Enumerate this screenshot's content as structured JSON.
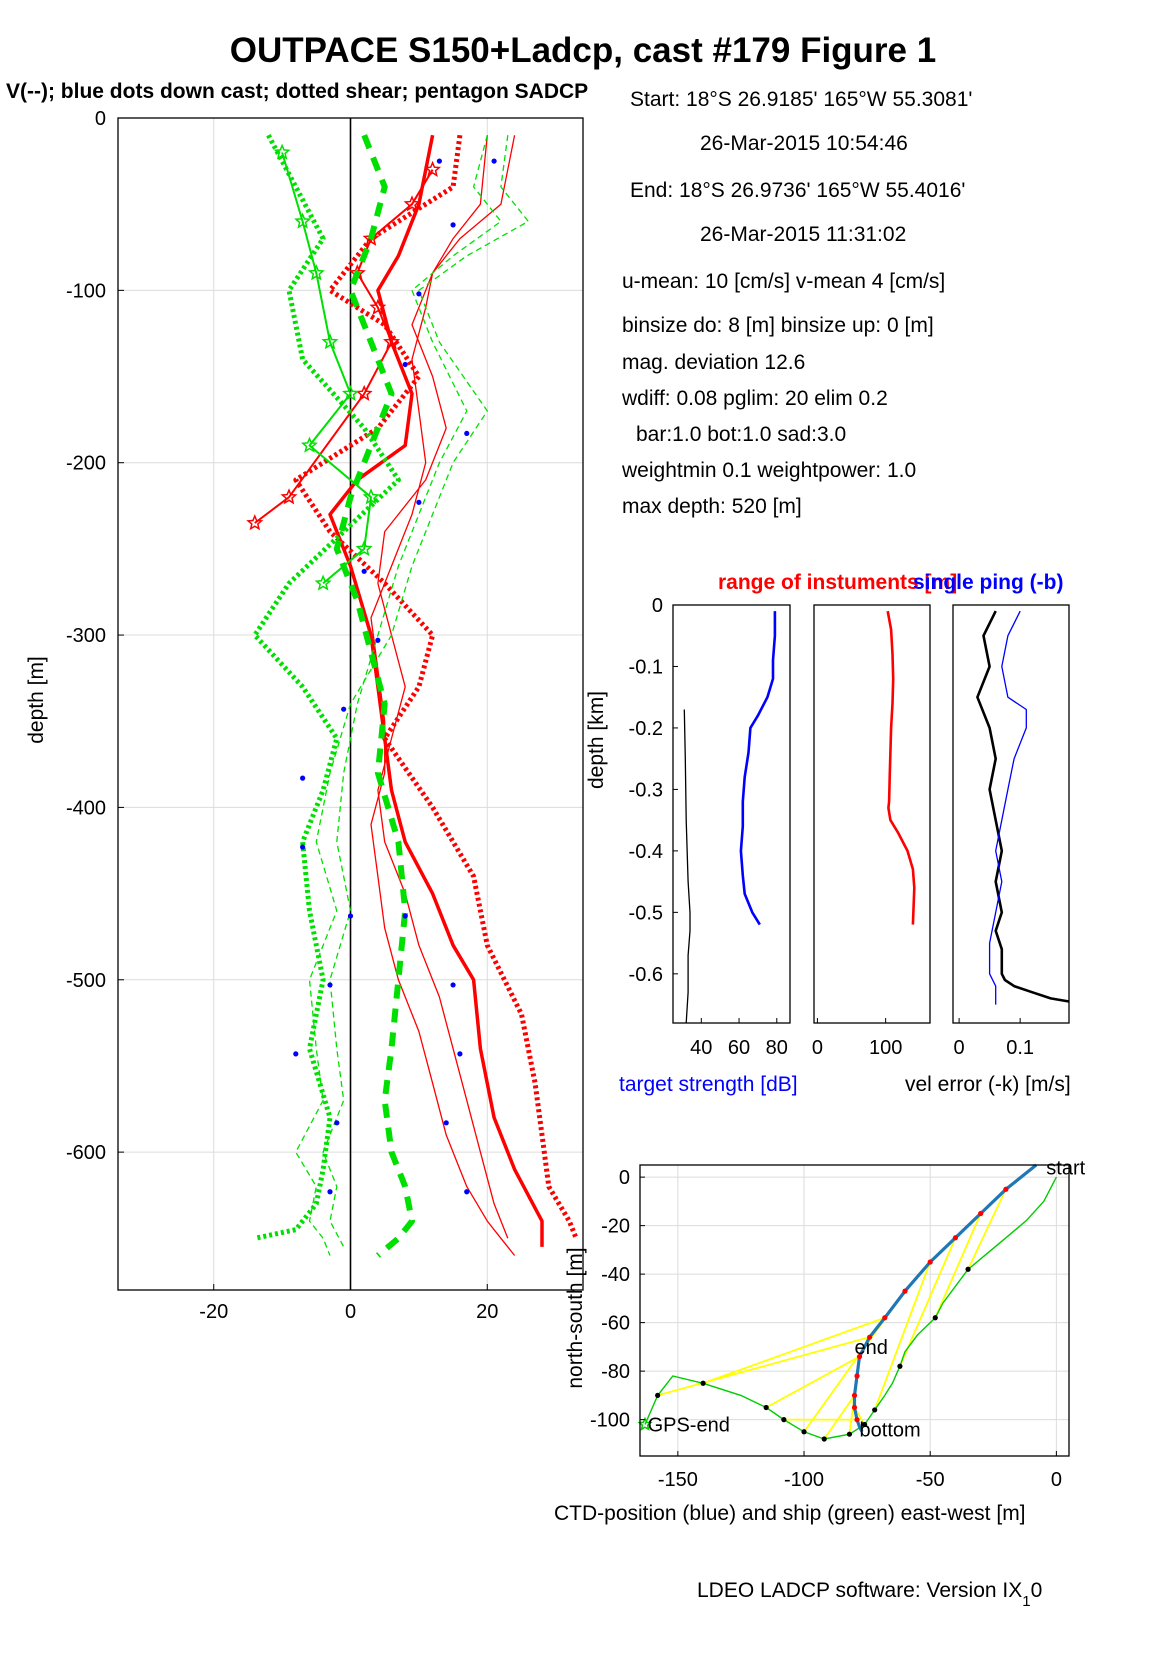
{
  "figure": {
    "title": "OUTPACE S150+Ladcp, cast #179  Figure 1",
    "subtitle": "V(--); blue dots down cast; dotted shear; pentagon SADCP",
    "footer_main": "LDEO LADCP software: Version IX",
    "footer_sub": "1",
    "footer_tail": "0"
  },
  "info_panel": {
    "lines": [
      "Start:  18°S 26.9185'     165°W 55.3081'",
      "26-Mar-2015 10:54:46",
      "End:   18°S 26.9736'     165°W 55.4016'",
      "26-Mar-2015 11:31:02",
      "u-mean:  10 [cm/s]    v-mean   4 [cm/s]",
      "binsize do: 8 [m]  binsize up:  0 [m]",
      "mag. deviation 12.6",
      "wdiff: 0.08  pglim: 20  elim 0.2",
      "bar:1.0 bot:1.0 sad:3.0",
      "weightmin 0.1  weightpower: 1.0",
      "max depth: 520 [m]"
    ]
  },
  "colors": {
    "u": "#ff0000",
    "v": "#00e000",
    "dots": "#0000ff",
    "ts": "#0000ff",
    "ship": "#00cc00",
    "ctd": "#1f77b4",
    "link": "#ffff00"
  },
  "chart_data": [
    {
      "type": "line",
      "id": "velocity-profile",
      "ylabel": "depth [m]",
      "xlim": [
        -34,
        34
      ],
      "ylim": [
        -680,
        0
      ],
      "xticks": [
        -20,
        0,
        20
      ],
      "yticks": [
        0,
        -100,
        -200,
        -300,
        -400,
        -500,
        -600
      ],
      "grid": true,
      "series": [
        {
          "key": "u_down",
          "style": "thin-solid",
          "color": "red",
          "x": [
            20,
            19,
            15,
            12,
            11,
            9,
            10,
            11,
            9,
            6,
            3,
            4,
            5,
            5,
            3,
            4,
            5,
            7,
            10,
            12,
            14,
            16,
            17,
            20,
            22,
            24
          ],
          "depth": [
            -10,
            -50,
            -70,
            -90,
            -110,
            -140,
            -170,
            -200,
            -230,
            -260,
            -290,
            -320,
            -350,
            -380,
            -410,
            -440,
            -470,
            -500,
            -530,
            -560,
            -590,
            -610,
            -620,
            -640,
            -650,
            -660
          ]
        },
        {
          "key": "u_shear",
          "style": "dotted",
          "color": "red",
          "x": [
            16,
            15,
            3,
            -3,
            5,
            10,
            4,
            -8,
            -3,
            5,
            12,
            10,
            5,
            12,
            18,
            20,
            25,
            27,
            28,
            29,
            32,
            33
          ],
          "depth": [
            -10,
            -40,
            -70,
            -100,
            -120,
            -150,
            -180,
            -210,
            -240,
            -270,
            -300,
            -330,
            -360,
            -400,
            -440,
            -480,
            -520,
            -560,
            -590,
            -620,
            -640,
            -650
          ]
        },
        {
          "key": "u_up",
          "style": "thin-solid",
          "color": "red",
          "x": [
            24,
            22,
            16,
            12,
            9,
            12,
            14,
            11,
            5,
            4,
            6,
            8,
            6,
            4,
            5,
            8,
            10,
            13,
            15,
            17,
            19,
            21,
            23
          ],
          "depth": [
            -10,
            -50,
            -70,
            -90,
            -120,
            -150,
            -180,
            -210,
            -240,
            -270,
            -300,
            -330,
            -360,
            -390,
            -420,
            -450,
            -480,
            -510,
            -540,
            -570,
            -600,
            -630,
            -650
          ]
        },
        {
          "key": "u_sadcp",
          "style": "star",
          "color": "red",
          "x": [
            12,
            9,
            3,
            1,
            4,
            6,
            2,
            -9,
            -14
          ],
          "depth": [
            -30,
            -50,
            -70,
            -90,
            -110,
            -130,
            -160,
            -220,
            -235
          ]
        },
        {
          "key": "u_total",
          "style": "thick-solid",
          "color": "red",
          "x": [
            12,
            10,
            7,
            4,
            6,
            9,
            8,
            1,
            -3,
            0,
            3,
            4,
            5,
            6,
            8,
            12,
            15,
            18,
            19,
            21,
            24,
            28,
            28
          ],
          "depth": [
            -10,
            -50,
            -80,
            -100,
            -130,
            -160,
            -190,
            -210,
            -230,
            -260,
            -300,
            -330,
            -360,
            -390,
            -420,
            -450,
            -480,
            -500,
            -540,
            -580,
            -610,
            -640,
            -655
          ]
        },
        {
          "key": "v_down",
          "style": "thin-dashed",
          "color": "green",
          "x": [
            23,
            22,
            26,
            17,
            10,
            13,
            20,
            15,
            12,
            9,
            6,
            0,
            -3,
            -5,
            -2,
            -6,
            -5,
            -4,
            -8,
            -5,
            -6,
            -4,
            -3
          ],
          "depth": [
            -10,
            -40,
            -60,
            -80,
            -100,
            -130,
            -170,
            -200,
            -230,
            -260,
            -300,
            -340,
            -380,
            -420,
            -460,
            -500,
            -540,
            -570,
            -600,
            -620,
            -640,
            -650,
            -660
          ]
        },
        {
          "key": "v_shear",
          "style": "dotted",
          "color": "green",
          "x": [
            -12,
            -8,
            -4,
            -9,
            -7,
            2,
            7,
            -1,
            -9,
            -14,
            -7,
            -2,
            -4,
            -7,
            -6,
            -4,
            -6,
            -3,
            -4,
            -5,
            -8,
            -14
          ],
          "depth": [
            -10,
            -40,
            -70,
            -100,
            -140,
            -180,
            -210,
            -240,
            -270,
            -300,
            -330,
            -360,
            -390,
            -420,
            -460,
            -500,
            -540,
            -580,
            -610,
            -630,
            -645,
            -650
          ]
        },
        {
          "key": "v_up",
          "style": "thin-dashed",
          "color": "green",
          "x": [
            20,
            18,
            22,
            15,
            9,
            12,
            17,
            13,
            10,
            7,
            4,
            1,
            -1,
            -2,
            0,
            -3,
            -2,
            -1,
            -4,
            -2,
            -3,
            -1
          ],
          "depth": [
            -10,
            -40,
            -60,
            -80,
            -100,
            -130,
            -170,
            -200,
            -230,
            -260,
            -300,
            -340,
            -380,
            -420,
            -460,
            -500,
            -540,
            -570,
            -600,
            -620,
            -640,
            -655
          ]
        },
        {
          "key": "v_sadcp",
          "style": "star",
          "color": "green",
          "x": [
            -10,
            -7,
            -5,
            -3,
            0,
            -6,
            3,
            2,
            -4
          ],
          "depth": [
            -20,
            -60,
            -90,
            -130,
            -160,
            -190,
            -220,
            -250,
            -270
          ]
        },
        {
          "key": "v_total",
          "style": "thick-dashed",
          "color": "green",
          "x": [
            2,
            5,
            3,
            0,
            3,
            6,
            3,
            0,
            -2,
            1,
            3,
            5,
            4,
            7,
            8,
            7,
            6,
            5,
            6,
            8,
            9,
            7,
            4
          ],
          "depth": [
            -10,
            -40,
            -70,
            -100,
            -130,
            -160,
            -190,
            -220,
            -250,
            -280,
            -310,
            -340,
            -380,
            -420,
            -460,
            -500,
            -540,
            -570,
            -600,
            -620,
            -640,
            -650,
            -660
          ]
        },
        {
          "key": "down_dots",
          "style": "dots",
          "color": "blue",
          "x": [
            13,
            21,
            15,
            10,
            8,
            17,
            10,
            2,
            4,
            -1,
            -7,
            -7,
            0,
            8,
            -3,
            15,
            -8,
            16,
            -2,
            14,
            -3,
            17
          ],
          "depth": [
            -25,
            -25,
            -62,
            -102,
            -143,
            -183,
            -223,
            -263,
            -303,
            -343,
            -383,
            -423,
            -463,
            -463,
            -503,
            -503,
            -543,
            -543,
            -583,
            -583,
            -623,
            -623
          ]
        }
      ]
    },
    {
      "type": "line",
      "id": "target-strength",
      "xlabel": "target strength [dB]",
      "ylabel": "depth [km]",
      "xlim": [
        25,
        87
      ],
      "ylim": [
        -0.68,
        0
      ],
      "xticks": [
        40,
        60,
        80
      ],
      "yticks": [
        0,
        -0.1,
        -0.2,
        -0.3,
        -0.4,
        -0.5,
        -0.6
      ],
      "series": [
        {
          "key": "ts_black",
          "color": "black",
          "x": [
            31,
            31.5,
            32,
            33,
            34,
            34,
            33,
            33,
            32
          ],
          "depth": [
            -0.17,
            -0.25,
            -0.35,
            -0.45,
            -0.5,
            -0.53,
            -0.57,
            -0.63,
            -0.68
          ]
        },
        {
          "key": "ts_blue",
          "color": "blue",
          "x": [
            79,
            79,
            78,
            78,
            75,
            70,
            66,
            65,
            63,
            62,
            62,
            61,
            62,
            63,
            67,
            71
          ],
          "depth": [
            -0.01,
            -0.05,
            -0.09,
            -0.12,
            -0.15,
            -0.18,
            -0.2,
            -0.24,
            -0.28,
            -0.32,
            -0.36,
            -0.4,
            -0.44,
            -0.47,
            -0.5,
            -0.52
          ]
        }
      ]
    },
    {
      "type": "line",
      "id": "range-of-instruments",
      "title": "range of instuments [m]",
      "xlim": [
        -5,
        165
      ],
      "ylim": [
        -0.68,
        0
      ],
      "xticks": [
        0,
        100
      ],
      "series": [
        {
          "key": "range",
          "color": "red",
          "x": [
            103,
            108,
            110,
            111,
            110,
            108,
            107,
            106,
            105,
            104,
            107,
            118,
            132,
            140,
            142,
            141,
            140
          ],
          "depth": [
            -0.01,
            -0.04,
            -0.08,
            -0.12,
            -0.16,
            -0.2,
            -0.24,
            -0.28,
            -0.32,
            -0.33,
            -0.35,
            -0.37,
            -0.4,
            -0.43,
            -0.46,
            -0.49,
            -0.52
          ]
        }
      ]
    },
    {
      "type": "line",
      "id": "velocity-error",
      "title": "single ping (-b)",
      "xlabel": "vel error (-k) [m/s]",
      "xlim": [
        -0.01,
        0.18
      ],
      "ylim": [
        -0.68,
        0
      ],
      "xticks": [
        0,
        0.1
      ],
      "series": [
        {
          "key": "err_k",
          "color": "black",
          "x": [
            0.06,
            0.04,
            0.05,
            0.03,
            0.05,
            0.06,
            0.05,
            0.06,
            0.07,
            0.06,
            0.07,
            0.06,
            0.07,
            0.07,
            0.07,
            0.075,
            0.09,
            0.12,
            0.15,
            0.18
          ],
          "depth": [
            -0.01,
            -0.05,
            -0.1,
            -0.15,
            -0.2,
            -0.25,
            -0.3,
            -0.35,
            -0.4,
            -0.45,
            -0.5,
            -0.53,
            -0.56,
            -0.58,
            -0.6,
            -0.61,
            -0.62,
            -0.63,
            -0.64,
            -0.645
          ]
        },
        {
          "key": "err_b",
          "color": "blue",
          "x": [
            0.1,
            0.08,
            0.07,
            0.08,
            0.11,
            0.11,
            0.09,
            0.08,
            0.07,
            0.06,
            0.07,
            0.06,
            0.05,
            0.05,
            0.06,
            0.06
          ],
          "depth": [
            -0.01,
            -0.05,
            -0.1,
            -0.15,
            -0.17,
            -0.2,
            -0.25,
            -0.3,
            -0.35,
            -0.4,
            -0.45,
            -0.5,
            -0.55,
            -0.6,
            -0.62,
            -0.65
          ]
        }
      ]
    },
    {
      "type": "line",
      "id": "position",
      "xlabel": "CTD-position (blue) and ship (green) east-west [m]",
      "ylabel": "north-south [m]",
      "xlim": [
        -165,
        5
      ],
      "ylim": [
        -115,
        5
      ],
      "xticks": [
        -150,
        -100,
        -50,
        0
      ],
      "yticks": [
        0,
        -20,
        -40,
        -60,
        -80,
        -100
      ],
      "grid": true,
      "labels": {
        "start": "start",
        "end": "end",
        "bottom": "bottom",
        "gps_end": "GPS-end"
      },
      "series": [
        {
          "key": "ctd",
          "color": "blue",
          "x": [
            -8,
            -20,
            -30,
            -40,
            -50,
            -60,
            -68,
            -74,
            -78,
            -79,
            -80,
            -80,
            -79,
            -78,
            -77
          ],
          "depth": [
            5,
            -5,
            -15,
            -25,
            -35,
            -47,
            -58,
            -66,
            -74,
            -82,
            -90,
            -95,
            -100,
            -103,
            -105
          ]
        },
        {
          "key": "ship",
          "color": "green",
          "x": [
            0,
            -5,
            -12,
            -20,
            -28,
            -35,
            -40,
            -45,
            -48,
            -55,
            -60,
            -62,
            -65,
            -68,
            -72,
            -76,
            -82,
            -92,
            -100,
            -108,
            -115,
            -125,
            -140,
            -152,
            -158,
            -163
          ],
          "depth": [
            0,
            -10,
            -18,
            -25,
            -32,
            -38,
            -45,
            -52,
            -58,
            -65,
            -72,
            -78,
            -85,
            -90,
            -96,
            -102,
            -106,
            -108,
            -105,
            -100,
            -95,
            -90,
            -85,
            -82,
            -90,
            -102
          ]
        }
      ]
    }
  ]
}
